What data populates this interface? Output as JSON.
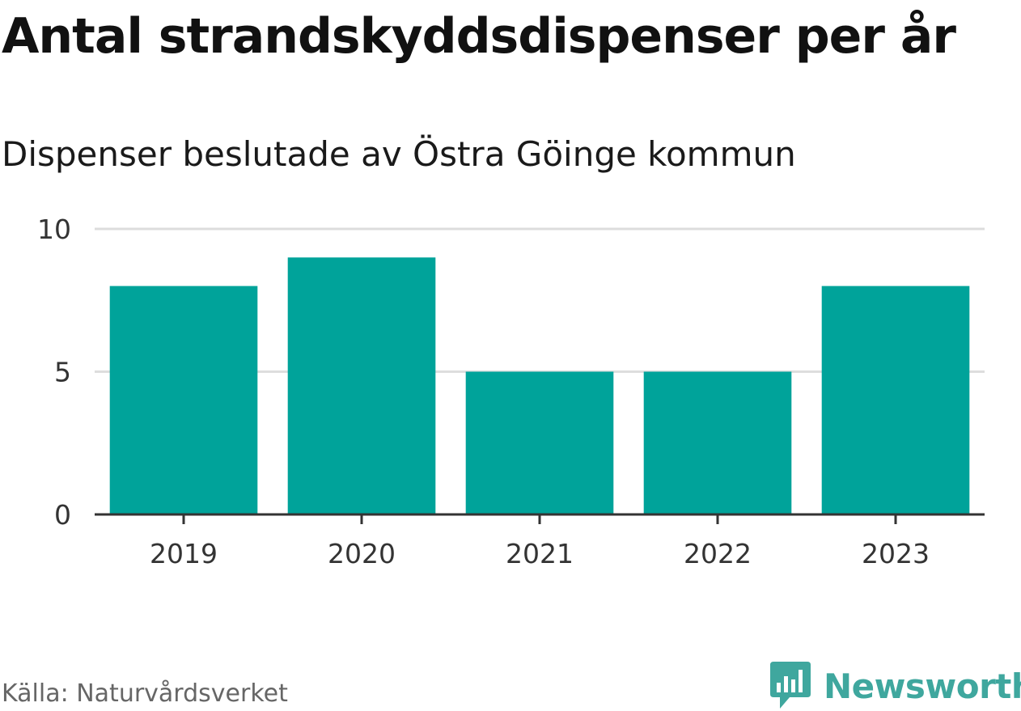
{
  "chart_data": {
    "type": "bar",
    "title": "Antal strandskyddsdispenser per år",
    "subtitle": "Dispenser beslutade av Östra Göinge kommun",
    "categories": [
      "2019",
      "2020",
      "2021",
      "2022",
      "2023"
    ],
    "values": [
      8,
      9,
      5,
      5,
      8
    ],
    "ylim": [
      0,
      10
    ],
    "yticks": [
      0,
      5,
      10
    ],
    "xlabel": "",
    "ylabel": "",
    "grid": true,
    "bar_color": "#00a39a",
    "legend": "none"
  },
  "footer": {
    "source": "Källa: Naturvårdsverket",
    "brand": "Newsworthy",
    "brand_icon": "newsworthy-logo-icon",
    "brand_color": "#3fa79e"
  }
}
